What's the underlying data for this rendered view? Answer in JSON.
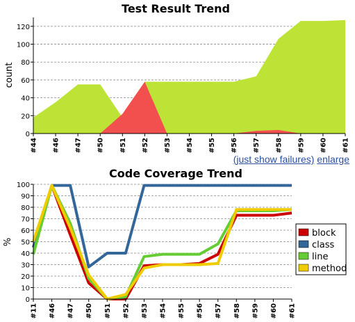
{
  "chart_data": [
    {
      "type": "area",
      "title": "Test Result Trend",
      "xlabel": "",
      "ylabel": "count",
      "ylim": [
        0,
        130
      ],
      "yticks": [
        0,
        20,
        40,
        60,
        80,
        100,
        120
      ],
      "grid": true,
      "categories": [
        "#44",
        "#46",
        "#47",
        "#50",
        "#51",
        "#52",
        "#53",
        "#54",
        "#55",
        "#56",
        "#57",
        "#58",
        "#59",
        "#60",
        "#61"
      ],
      "series": [
        {
          "color": "#bde337",
          "values": [
            18,
            35,
            55,
            55,
            18,
            58,
            58,
            58,
            58,
            58,
            64,
            106,
            126,
            126,
            127
          ]
        },
        {
          "color": "#f24f4f",
          "values": [
            0,
            0,
            0,
            0,
            22,
            58,
            0,
            0,
            0,
            0,
            3,
            4,
            0,
            0,
            0
          ]
        }
      ]
    },
    {
      "type": "line",
      "title": "Code Coverage Trend",
      "xlabel": "",
      "ylabel": "%",
      "ylim": [
        0,
        100
      ],
      "yticks": [
        0,
        10,
        20,
        30,
        40,
        50,
        60,
        70,
        80,
        90,
        100
      ],
      "grid": true,
      "legend": "right",
      "categories": [
        "#11",
        "#46",
        "#47",
        "#50",
        "#51",
        "#52",
        "#53",
        "#54",
        "#55",
        "#56",
        "#57",
        "#58",
        "#59",
        "#60",
        "#61"
      ],
      "series": [
        {
          "name": "block",
          "color": "#cc0000",
          "values": [
            45,
            99,
            56,
            14,
            0,
            0,
            29,
            30,
            30,
            31,
            39,
            73,
            73,
            73,
            75
          ]
        },
        {
          "name": "class",
          "color": "#336699",
          "values": [
            45,
            99,
            99,
            28,
            40,
            40,
            99,
            99,
            99,
            99,
            99,
            99,
            99,
            99,
            99
          ]
        },
        {
          "name": "line",
          "color": "#66cc33",
          "values": [
            39,
            99,
            66,
            18,
            0,
            2,
            37,
            39,
            39,
            39,
            48,
            77,
            77,
            77,
            78
          ]
        },
        {
          "name": "method",
          "color": "#eecc00",
          "values": [
            50,
            99,
            62,
            21,
            0,
            4,
            27,
            30,
            30,
            30,
            31,
            78,
            78,
            78,
            78
          ]
        }
      ]
    }
  ],
  "links": {
    "show_failures": "(just show failures)",
    "enlarge": "enlarge"
  }
}
